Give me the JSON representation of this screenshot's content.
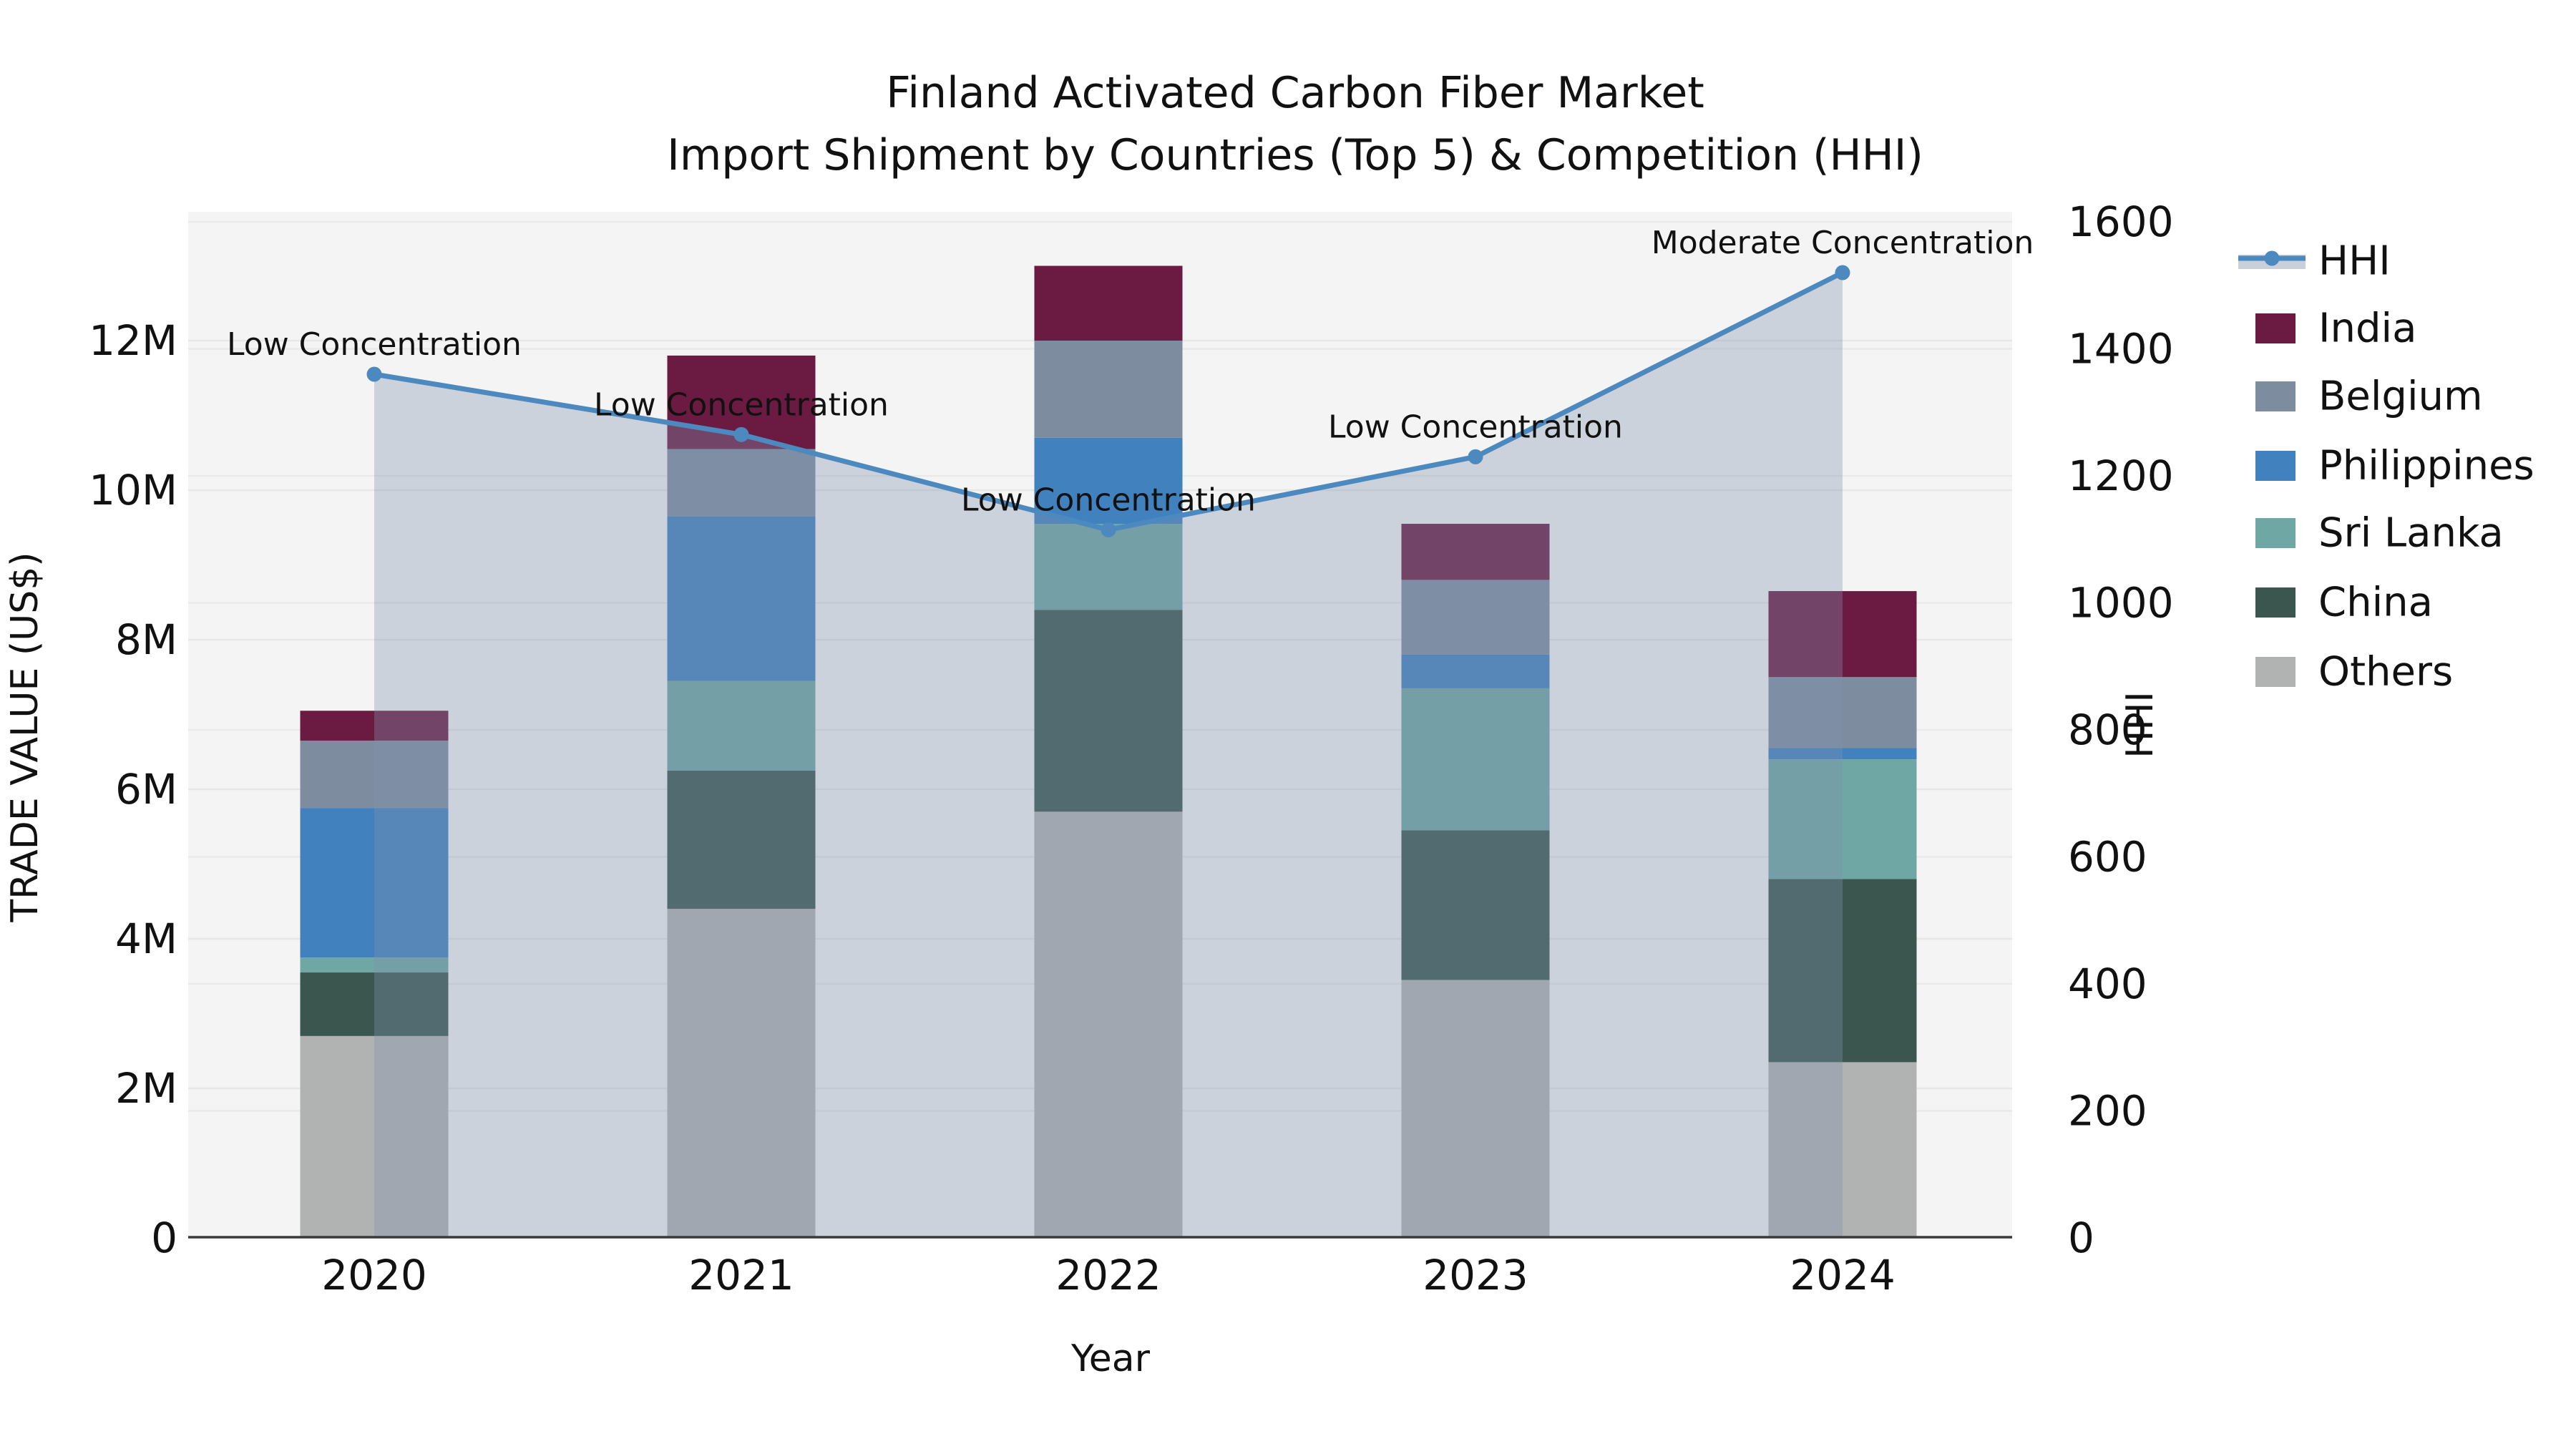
{
  "title": {
    "line1": "Finland Activated Carbon Fiber Market",
    "line2": "Import Shipment by Countries (Top 5) & Competition (HHI)"
  },
  "axes": {
    "x_label": "Year",
    "y_left_label": "TRADE VALUE (US$)",
    "y_right_label": "HHI",
    "x_ticks": [
      "2020",
      "2021",
      "2022",
      "2023",
      "2024"
    ],
    "y_left_ticks": [
      {
        "value": 0,
        "label": "0"
      },
      {
        "value": 2,
        "label": "2M"
      },
      {
        "value": 4,
        "label": "4M"
      },
      {
        "value": 6,
        "label": "6M"
      },
      {
        "value": 8,
        "label": "8M"
      },
      {
        "value": 10,
        "label": "10M"
      },
      {
        "value": 12,
        "label": "12M"
      }
    ],
    "y_right_ticks": [
      {
        "value": 0,
        "label": "0"
      },
      {
        "value": 200,
        "label": "200"
      },
      {
        "value": 400,
        "label": "400"
      },
      {
        "value": 600,
        "label": "600"
      },
      {
        "value": 800,
        "label": "800"
      },
      {
        "value": 1000,
        "label": "1000"
      },
      {
        "value": 1200,
        "label": "1200"
      },
      {
        "value": 1400,
        "label": "1400"
      },
      {
        "value": 1600,
        "label": "1600"
      }
    ]
  },
  "chart_data": {
    "type": "bar+line",
    "categories": [
      "2020",
      "2021",
      "2022",
      "2023",
      "2024"
    ],
    "value_unit": "millions USD",
    "series": [
      {
        "name": "Others",
        "color": "#B1B3B2",
        "values": [
          2.7,
          4.4,
          5.7,
          3.45,
          2.35
        ]
      },
      {
        "name": "China",
        "color": "#3A564F",
        "values": [
          0.85,
          1.85,
          2.7,
          2.0,
          2.45
        ]
      },
      {
        "name": "Sri Lanka",
        "color": "#6EA7A4",
        "values": [
          0.2,
          1.2,
          1.15,
          1.9,
          1.6
        ]
      },
      {
        "name": "Philippines",
        "color": "#4181BE",
        "values": [
          2.0,
          2.2,
          1.15,
          0.45,
          0.15
        ]
      },
      {
        "name": "Belgium",
        "color": "#7D8C9E",
        "values": [
          0.9,
          0.9,
          1.3,
          1.0,
          0.95
        ]
      },
      {
        "name": "India",
        "color": "#6B1B41",
        "values": [
          0.4,
          1.25,
          1.0,
          0.75,
          1.15
        ]
      }
    ],
    "hhi_line": {
      "name": "HHI",
      "color": "#4C89BE",
      "area_color": "rgba(128,146,176,0.35)",
      "values": [
        1360,
        1265,
        1115,
        1230,
        1520
      ]
    },
    "annotations": [
      {
        "category": "2020",
        "text": "Low Concentration"
      },
      {
        "category": "2021",
        "text": "Low Concentration"
      },
      {
        "category": "2022",
        "text": "Low Concentration"
      },
      {
        "category": "2023",
        "text": "Low Concentration"
      },
      {
        "category": "2024",
        "text": "Moderate Concentration"
      }
    ],
    "ylim_left": [
      0,
      13.7
    ],
    "ylim_right": [
      0,
      1615
    ],
    "grid": true,
    "legend_position": "right"
  },
  "legend": {
    "items": [
      {
        "label": "HHI",
        "type": "line",
        "color": "#4C89BE"
      },
      {
        "label": "India",
        "type": "patch",
        "color": "#6B1B41"
      },
      {
        "label": "Belgium",
        "type": "patch",
        "color": "#7D8C9E"
      },
      {
        "label": "Philippines",
        "type": "patch",
        "color": "#4181BE"
      },
      {
        "label": "Sri Lanka",
        "type": "patch",
        "color": "#6EA7A4"
      },
      {
        "label": "China",
        "type": "patch",
        "color": "#3A564F"
      },
      {
        "label": "Others",
        "type": "patch",
        "color": "#B1B3B2"
      }
    ]
  }
}
